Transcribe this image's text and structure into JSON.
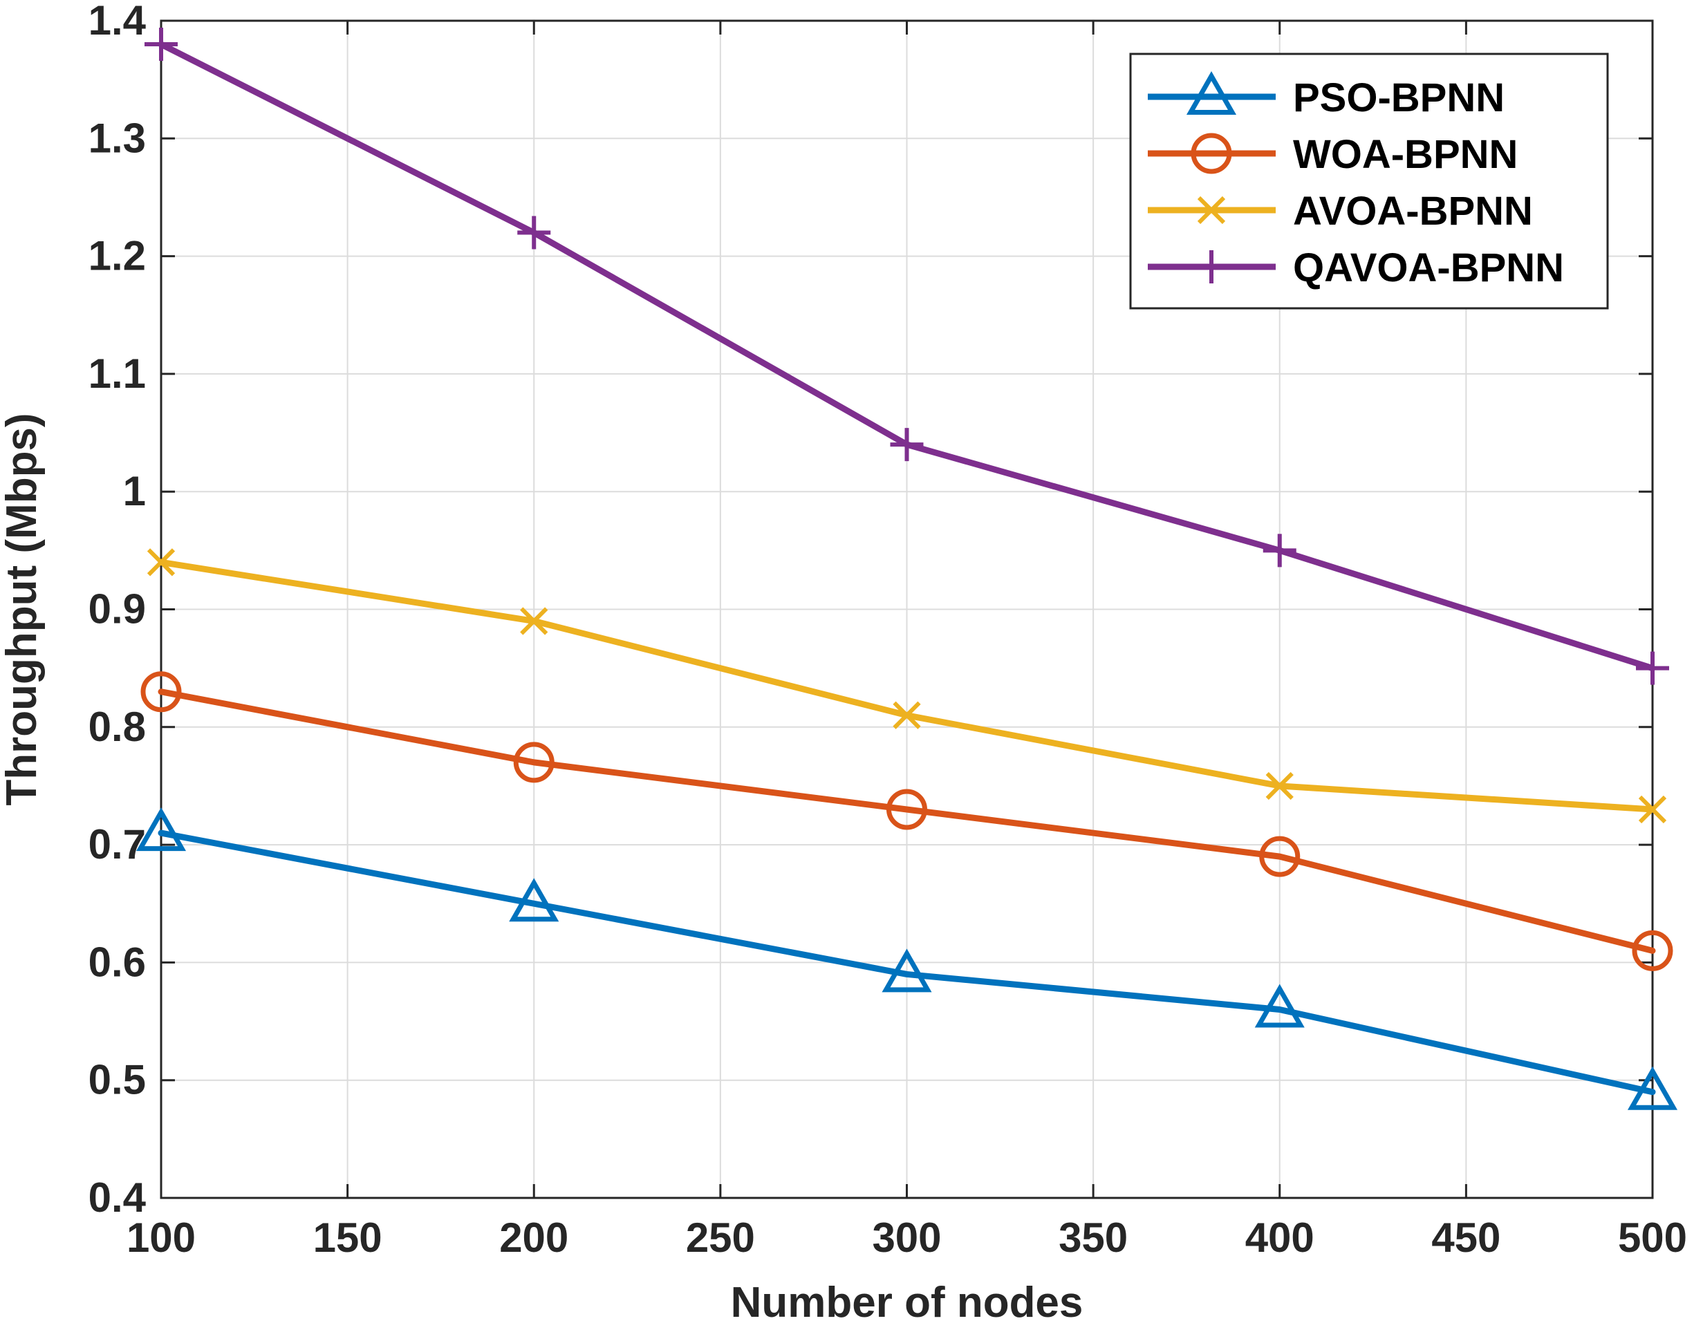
{
  "chart_data": {
    "type": "line",
    "title": "",
    "xlabel": "Number of nodes",
    "ylabel": "Throughput (Mbps)",
    "xlim": [
      100,
      500
    ],
    "ylim": [
      0.4,
      1.4
    ],
    "xticks": [
      100,
      150,
      200,
      250,
      300,
      350,
      400,
      450,
      500
    ],
    "yticks": [
      0.4,
      0.5,
      0.6,
      0.7,
      0.8,
      0.9,
      1.0,
      1.1,
      1.2,
      1.3,
      1.4
    ],
    "xtick_labels": [
      "100",
      "150",
      "200",
      "250",
      "300",
      "350",
      "400",
      "450",
      "500"
    ],
    "ytick_labels": [
      "0.4",
      "0.5",
      "0.6",
      "0.7",
      "0.8",
      "0.9",
      "1",
      "1.1",
      "1.2",
      "1.3",
      "1.4"
    ],
    "grid": true,
    "legend_position": "top-right",
    "x": [
      100,
      200,
      300,
      400,
      500
    ],
    "series": [
      {
        "name": "PSO-BPNN",
        "color": "#0072BD",
        "marker": "triangle",
        "values": [
          0.71,
          0.65,
          0.59,
          0.56,
          0.49
        ]
      },
      {
        "name": "WOA-BPNN",
        "color": "#D95319",
        "marker": "circle",
        "values": [
          0.83,
          0.77,
          0.73,
          0.69,
          0.61
        ]
      },
      {
        "name": "AVOA-BPNN",
        "color": "#EDB120",
        "marker": "x",
        "values": [
          0.94,
          0.89,
          0.81,
          0.75,
          0.73
        ]
      },
      {
        "name": "QAVOA-BPNN",
        "color": "#7E2F8E",
        "marker": "plus",
        "values": [
          1.38,
          1.22,
          1.04,
          0.95,
          0.85
        ]
      }
    ]
  }
}
